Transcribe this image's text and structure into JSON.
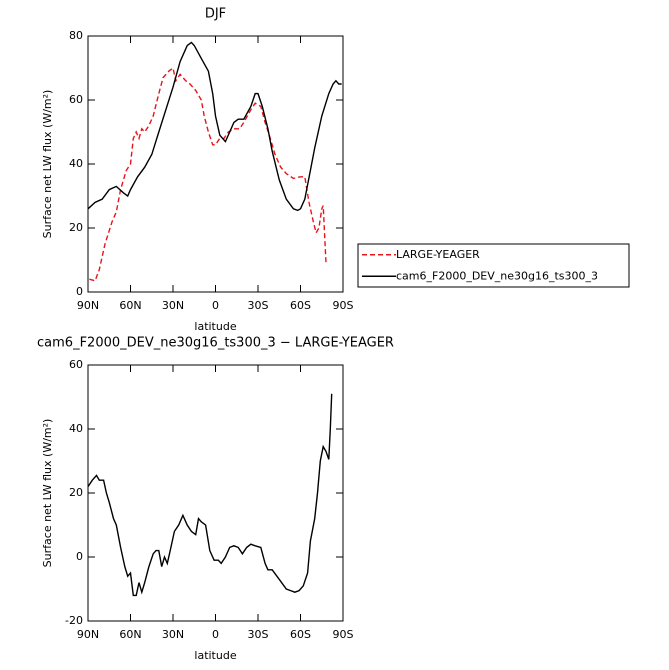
{
  "chart_data": [
    {
      "type": "line",
      "title": "DJF",
      "xlabel": "latitude",
      "ylabel": "Surface net LW flux (W/m²)",
      "xlim": [
        90,
        -90
      ],
      "ylim": [
        0,
        80
      ],
      "xticks": [
        {
          "value": 90,
          "label": "90N"
        },
        {
          "value": 60,
          "label": "60N"
        },
        {
          "value": 30,
          "label": "30N"
        },
        0,
        {
          "value": -30,
          "label": "30S"
        },
        {
          "value": -60,
          "label": "60S"
        },
        {
          "value": -90,
          "label": "90S"
        }
      ],
      "yticks": [
        0,
        20,
        40,
        60,
        80
      ],
      "legend": "right",
      "series": [
        {
          "name": "LARGE-YEAGER",
          "color": "#e8141c",
          "dash": true,
          "x": [
            89,
            85,
            82,
            78,
            73,
            70,
            67,
            63,
            60,
            58,
            56,
            54,
            52,
            50,
            47,
            44,
            40,
            37,
            33,
            30,
            28,
            25,
            21,
            18,
            14,
            10,
            8,
            5,
            2,
            0,
            -3,
            -6,
            -9,
            -13,
            -17,
            -20,
            -25,
            -28,
            -32,
            -35,
            -38,
            -42,
            -46,
            -50,
            -55,
            -60,
            -63,
            -66,
            -69,
            -71,
            -73,
            -75,
            -76,
            -77,
            -78
          ],
          "values": [
            4,
            3.5,
            7,
            15,
            22,
            25,
            32,
            38,
            40,
            48,
            50,
            48,
            51,
            50,
            52,
            55,
            62,
            67,
            69,
            70,
            66,
            68,
            66,
            65,
            63,
            60,
            55,
            50,
            46,
            46,
            48,
            48,
            50,
            51,
            51,
            53,
            57,
            59,
            58,
            53,
            49,
            43,
            39,
            37,
            35.5,
            36,
            36,
            28,
            22,
            18.5,
            20,
            26,
            27,
            18,
            9
          ]
        },
        {
          "name": "cam6_F2000_DEV_ne30g16_ts300_3",
          "color": "#000000",
          "dash": false,
          "x": [
            90,
            85,
            80,
            75,
            70,
            65,
            62,
            60,
            55,
            50,
            45,
            40,
            35,
            30,
            25,
            20,
            17,
            15,
            10,
            5,
            2,
            0,
            -3,
            -7,
            -10,
            -13,
            -16,
            -20,
            -25,
            -28,
            -30,
            -33,
            -37,
            -40,
            -45,
            -50,
            -55,
            -58,
            -60,
            -63,
            -67,
            -70,
            -75,
            -80,
            -83,
            -85,
            -87,
            -89
          ],
          "values": [
            26,
            28,
            29,
            32,
            33,
            31,
            30,
            32,
            36,
            39,
            43,
            50,
            57,
            64,
            72,
            77,
            78,
            77,
            73,
            69,
            62,
            55,
            49,
            47,
            50,
            53,
            54,
            54,
            58,
            62,
            62,
            58,
            51,
            44,
            35,
            29,
            26,
            25.5,
            26,
            29,
            38,
            45,
            55,
            62,
            65,
            66,
            65,
            65
          ]
        }
      ]
    },
    {
      "type": "line",
      "title": "cam6_F2000_DEV_ne30g16_ts300_3 − LARGE-YEAGER",
      "xlabel": "latitude",
      "ylabel": "Surface net LW flux (W/m²)",
      "xlim": [
        90,
        -90
      ],
      "ylim": [
        -20,
        60
      ],
      "xticks": [
        {
          "value": 90,
          "label": "90N"
        },
        {
          "value": 60,
          "label": "60N"
        },
        {
          "value": 30,
          "label": "30N"
        },
        0,
        {
          "value": -30,
          "label": "30S"
        },
        {
          "value": -60,
          "label": "60S"
        },
        {
          "value": -90,
          "label": "90S"
        }
      ],
      "yticks": [
        -20,
        0,
        20,
        40,
        60
      ],
      "color": "#000000",
      "x": [
        90,
        87,
        84,
        82,
        79,
        77,
        75,
        72,
        70,
        67,
        64,
        62,
        60,
        58,
        56,
        54,
        52,
        50,
        47,
        44,
        42,
        40,
        38,
        36,
        34,
        32,
        29,
        26,
        23,
        20,
        17,
        14,
        12,
        10,
        7,
        4,
        1,
        -2,
        -4,
        -7,
        -10,
        -13,
        -16,
        -19,
        -22,
        -25,
        -28,
        -32,
        -35,
        -37,
        -40,
        -45,
        -50,
        -53,
        -56,
        -59,
        -62,
        -65,
        -67,
        -70,
        -72,
        -74,
        -76,
        -78,
        -80,
        -81,
        -82
      ],
      "values": [
        22,
        24,
        25.5,
        24,
        24,
        20,
        17,
        12,
        10,
        3,
        -3,
        -6,
        -5,
        -12,
        -12,
        -8,
        -11,
        -8,
        -3,
        1,
        2,
        2,
        -3,
        0,
        -2,
        2,
        8,
        10,
        13,
        10,
        8,
        7,
        12,
        11,
        10,
        2,
        -1,
        -1,
        -2,
        0,
        3,
        3.5,
        3,
        1,
        3,
        4,
        3.5,
        3,
        -2,
        -4,
        -4,
        -7,
        -10,
        -10.5,
        -11,
        -10.5,
        -9,
        -5,
        5,
        12,
        20,
        30,
        34.5,
        33,
        30.5,
        40,
        51
      ]
    }
  ]
}
